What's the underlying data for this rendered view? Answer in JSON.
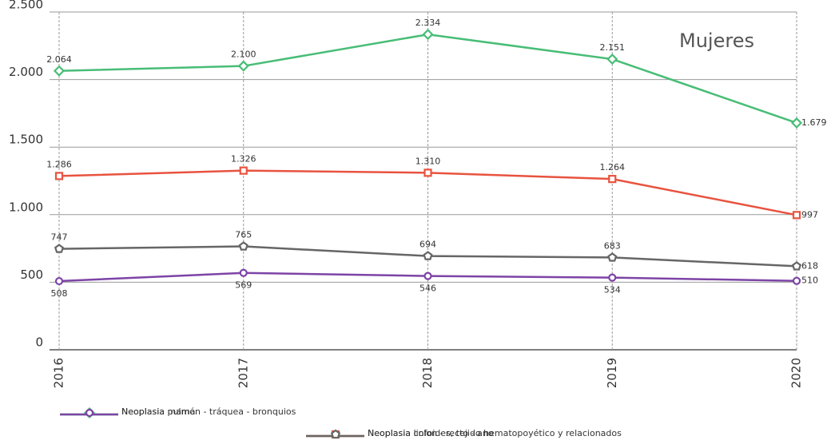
{
  "chart_data": {
    "type": "line",
    "annotation": "Mujeres",
    "categories": [
      "2016",
      "2017",
      "2018",
      "2019",
      "2020"
    ],
    "ylim": [
      0,
      2500
    ],
    "yticks": [
      0,
      500,
      {
        "value": 1000,
        "label": "1.000"
      },
      {
        "value": 1500,
        "label": "1.500"
      },
      {
        "value": 2000,
        "label": "2.000"
      },
      {
        "value": 2500,
        "label": "2.500"
      }
    ],
    "grid": true,
    "series": [
      {
        "name": "Neoplasia mama",
        "color": "#48bd76",
        "marker": "diamond",
        "values": [
          2064,
          2100,
          2334,
          2151,
          1679
        ],
        "value_labels": [
          "2.064",
          "2.100",
          "2.334",
          "2.151",
          "1.679"
        ]
      },
      {
        "name": "Neoplasia colon - recto - ano",
        "color": "#e8533f",
        "marker": "square",
        "values": [
          1286,
          1326,
          1310,
          1264,
          997
        ],
        "value_labels": [
          "1.286",
          "1.326",
          "1.310",
          "1.264",
          "997"
        ]
      },
      {
        "name": "Neoplasia pulmón - tráquea - bronquios",
        "color": "#7d44a6",
        "marker": "circle",
        "values": [
          508,
          569,
          546,
          534,
          510
        ]
      },
      {
        "name": "Neoplasia linfoides, tejido hematopoyético y relacionados",
        "color": "#666666",
        "marker": "pentagon",
        "values": [
          747,
          765,
          694,
          683,
          618
        ]
      }
    ]
  }
}
